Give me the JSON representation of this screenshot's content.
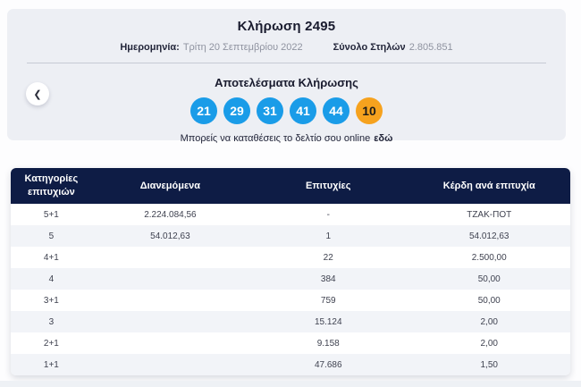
{
  "draw": {
    "title": "Κλήρωση 2495",
    "date_label": "Ημερομηνία:",
    "date_value": "Τρίτη 20 Σεπτεμβρίου 2022",
    "columns_label": "Σύνολο Στηλών",
    "columns_value": "2.805.851"
  },
  "results": {
    "title": "Αποτελέσματα Κλήρωσης",
    "numbers": [
      "21",
      "29",
      "31",
      "41",
      "44"
    ],
    "joker": "10",
    "online_text": "Μπορείς να καταθέσεις το δελτίο σου online",
    "online_link_label": "εδώ"
  },
  "nav": {
    "prev_icon": "chevron-left",
    "prev_glyph": "❮"
  },
  "table": {
    "headers": [
      "Κατηγορίες επιτυχιών",
      "Διανεμόμενα",
      "Επιτυχίες",
      "Κέρδη ανά επιτυχία"
    ],
    "rows": [
      {
        "category": "5+1",
        "distributed": "2.224.084,56",
        "wins": "-",
        "prize": "ΤΖΑΚ-ΠΟΤ"
      },
      {
        "category": "5",
        "distributed": "54.012,63",
        "wins": "1",
        "prize": "54.012,63"
      },
      {
        "category": "4+1",
        "distributed": "",
        "wins": "22",
        "prize": "2.500,00"
      },
      {
        "category": "4",
        "distributed": "",
        "wins": "384",
        "prize": "50,00"
      },
      {
        "category": "3+1",
        "distributed": "",
        "wins": "759",
        "prize": "50,00"
      },
      {
        "category": "3",
        "distributed": "",
        "wins": "15.124",
        "prize": "2,00"
      },
      {
        "category": "2+1",
        "distributed": "",
        "wins": "9.158",
        "prize": "2,00"
      },
      {
        "category": "1+1",
        "distributed": "",
        "wins": "47.686",
        "prize": "1,50"
      }
    ]
  },
  "colors": {
    "number_ball": "#1a9ce8",
    "joker_ball": "#f6a21e",
    "table_header_bg": "#0e1c45",
    "row_alt_bg": "#f2f4f8",
    "panel_bg": "#edeff4"
  }
}
